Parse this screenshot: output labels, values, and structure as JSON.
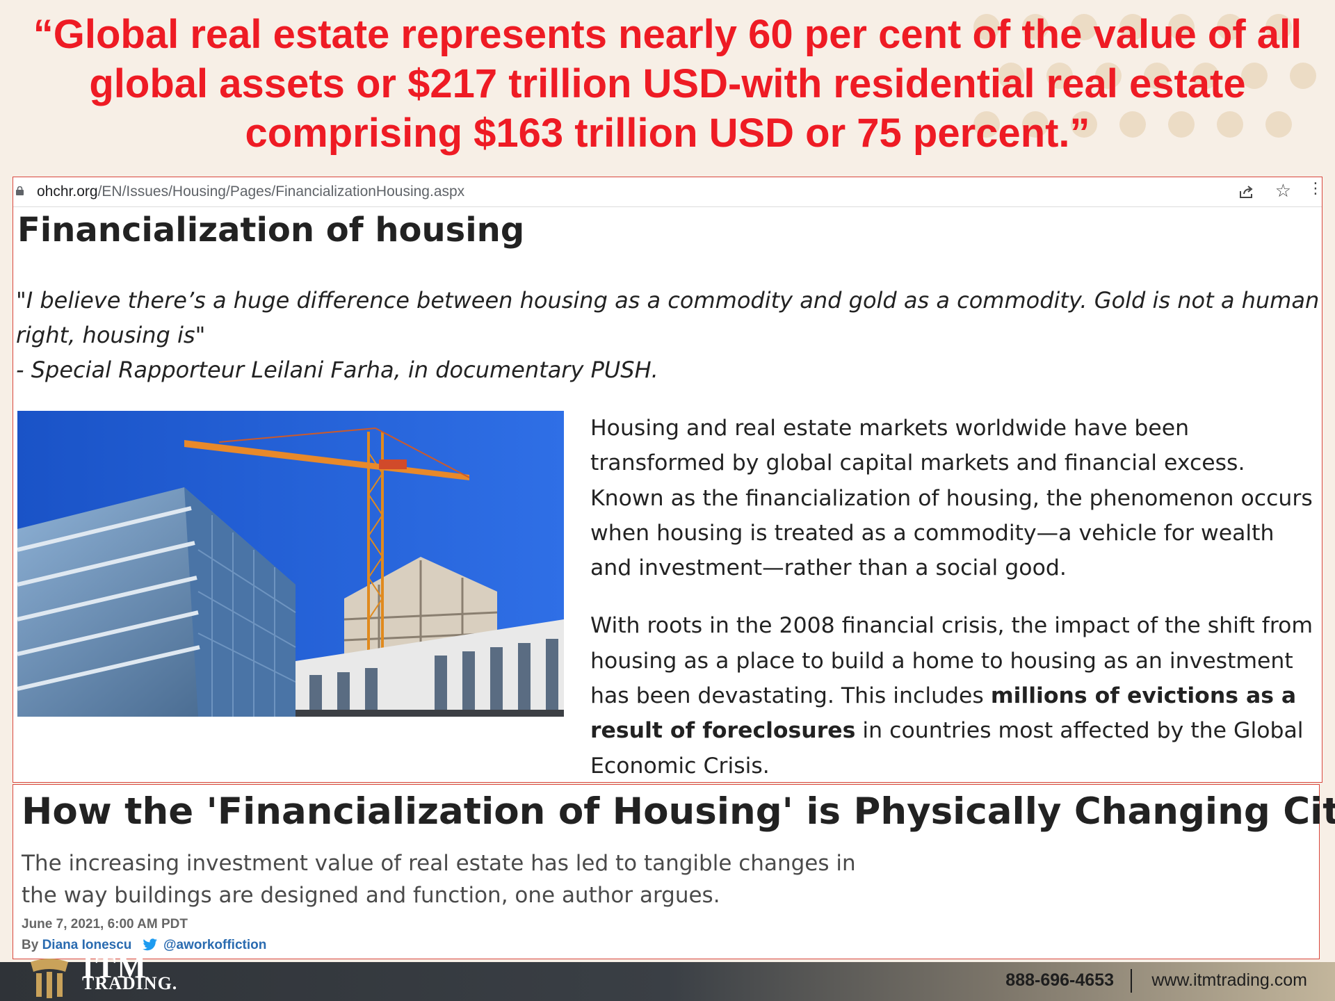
{
  "headline_quote": {
    "line1": "“Global real estate represents nearly 60 per cent of the value of all",
    "line2": "global assets or $217 trillion USD-with residential real estate",
    "line3": "comprising $163 trillion USD or 75 percent.”"
  },
  "browser": {
    "url_host": "ohchr.org",
    "url_path": "/EN/Issues/Housing/Pages/FinancializationHousing.aspx",
    "icons": [
      "lock-icon",
      "share-icon",
      "star-icon"
    ]
  },
  "ohchr_page": {
    "title": "Financialization of housing",
    "quote_line1": "\"I believe there’s a huge difference between housing as a commodity and gold as a commodity. Gold is not a human right, housing is\"",
    "quote_line2": "- Special Rapporteur Leilani Farha, in documentary PUSH.",
    "paragraph1": "Housing and real estate markets worldwide have been transformed by global capital markets and financial excess. Known as the financialization of housing, the phenomenon occurs when housing is treated as a commodity—a vehicle for wealth and investment—rather than a social good.",
    "paragraph2_start": "With roots in the 2008 financial crisis, the impact of the shift from housing as a place to build a home to housing as an investment has been devastating. This includes ",
    "paragraph2_bold": "millions of evictions as a result of foreclosures",
    "paragraph2_end": " in countries most affected by the Global Economic Crisis."
  },
  "article": {
    "headline": "How the 'Financialization of Housing' is Physically Changing Cities",
    "dek": "The increasing investment value of real estate has led to tangible changes in the way buildings are designed and function, one author argues.",
    "date": "June 7, 2021, 6:00 AM PDT",
    "by_label": "By",
    "author": "Diana Ionescu",
    "twitter_handle": "@aworkoffiction"
  },
  "footer": {
    "logo_text": "ITM",
    "logo_subtext": "TRADING.",
    "phone": "888-696-4653",
    "website": "www.itmtrading.com"
  },
  "colors": {
    "quote_red": "#ee1b24",
    "panel_border": "#d9463c",
    "link_blue": "#2a6bb0",
    "sky_blue": "#1d63d8"
  }
}
